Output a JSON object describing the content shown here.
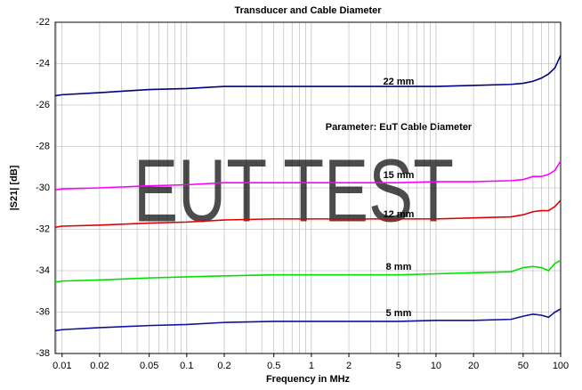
{
  "chart_data": {
    "type": "line",
    "title": "Transducer and Cable Diameter",
    "x_label": "Frequency in MHz",
    "y_label": "|S21| [dB]",
    "watermark": "EUT TEST",
    "log_x": true,
    "grid": true,
    "xlim": [
      0.0088,
      100
    ],
    "ylim": [
      -38,
      -22
    ],
    "xticks": [
      0.01,
      0.02,
      0.05,
      0.1,
      0.2,
      0.5,
      1,
      2,
      5,
      10,
      20,
      50,
      100
    ],
    "yticks": [
      -38,
      -36,
      -34,
      -32,
      -30,
      -28,
      -26,
      -24,
      -22
    ],
    "x": [
      0.0088,
      0.01,
      0.02,
      0.05,
      0.1,
      0.2,
      0.5,
      1,
      2,
      5,
      10,
      20,
      40,
      50,
      60,
      70,
      80,
      90,
      100
    ],
    "series": [
      {
        "name": "22 mm",
        "color": "#000080",
        "values": [
          -25.55,
          -25.5,
          -25.4,
          -25.25,
          -25.2,
          -25.1,
          -25.1,
          -25.1,
          -25.1,
          -25.1,
          -25.1,
          -25.05,
          -25.0,
          -24.95,
          -24.85,
          -24.7,
          -24.5,
          -24.2,
          -23.6
        ]
      },
      {
        "name": "15 mm",
        "color": "#ff00ff",
        "values": [
          -30.1,
          -30.05,
          -30.0,
          -29.9,
          -29.85,
          -29.75,
          -29.75,
          -29.75,
          -29.75,
          -29.75,
          -29.7,
          -29.7,
          -29.65,
          -29.6,
          -29.45,
          -29.45,
          -29.35,
          -29.15,
          -28.7
        ]
      },
      {
        "name": "12 mm",
        "color": "#e00000",
        "values": [
          -31.9,
          -31.85,
          -31.8,
          -31.7,
          -31.65,
          -31.55,
          -31.5,
          -31.5,
          -31.5,
          -31.5,
          -31.5,
          -31.45,
          -31.4,
          -31.3,
          -31.15,
          -31.1,
          -31.1,
          -30.9,
          -30.6
        ]
      },
      {
        "name": "8 mm",
        "color": "#00e000",
        "values": [
          -34.55,
          -34.5,
          -34.45,
          -34.35,
          -34.3,
          -34.25,
          -34.2,
          -34.2,
          -34.2,
          -34.2,
          -34.15,
          -34.1,
          -34.05,
          -33.85,
          -33.8,
          -33.85,
          -34.0,
          -33.65,
          -33.5
        ]
      },
      {
        "name": "5 mm",
        "color": "#1010a0",
        "values": [
          -36.9,
          -36.85,
          -36.75,
          -36.65,
          -36.6,
          -36.5,
          -36.45,
          -36.45,
          -36.45,
          -36.45,
          -36.4,
          -36.4,
          -36.35,
          -36.2,
          -36.1,
          -36.15,
          -36.25,
          -36.0,
          -35.85
        ]
      }
    ],
    "annotation": "Parameter: EuT Cable Diameter"
  }
}
